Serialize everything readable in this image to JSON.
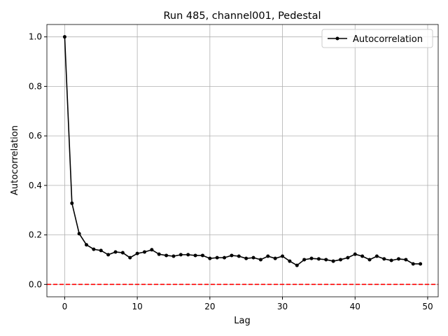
{
  "chart_data": {
    "type": "line",
    "title": "Run 485, channel001, Pedestal",
    "x_label": "Lag",
    "y_label": "Autocorrelation",
    "x": [
      0,
      1,
      2,
      3,
      4,
      5,
      6,
      7,
      8,
      9,
      10,
      11,
      12,
      13,
      14,
      15,
      16,
      17,
      18,
      19,
      20,
      21,
      22,
      23,
      24,
      25,
      26,
      27,
      28,
      29,
      30,
      31,
      32,
      33,
      34,
      35,
      36,
      37,
      38,
      39,
      40,
      41,
      42,
      43,
      44,
      45,
      46,
      47,
      48,
      49
    ],
    "series": [
      {
        "name": "Autocorrelation",
        "color": "#000000",
        "values": [
          1.0,
          0.328,
          0.205,
          0.16,
          0.142,
          0.137,
          0.12,
          0.131,
          0.128,
          0.108,
          0.125,
          0.131,
          0.14,
          0.122,
          0.117,
          0.114,
          0.12,
          0.12,
          0.117,
          0.117,
          0.105,
          0.108,
          0.108,
          0.117,
          0.114,
          0.105,
          0.108,
          0.1,
          0.114,
          0.105,
          0.114,
          0.094,
          0.077,
          0.1,
          0.105,
          0.103,
          0.1,
          0.094,
          0.1,
          0.108,
          0.122,
          0.114,
          0.1,
          0.114,
          0.103,
          0.097,
          0.103,
          0.1,
          0.083,
          0.083
        ]
      }
    ],
    "reference_line": {
      "y": 0,
      "color": "#ff0000"
    },
    "xlim": [
      -2.45,
      51.45
    ],
    "ylim": [
      -0.05,
      1.05
    ],
    "xticks": [
      0,
      10,
      20,
      30,
      40,
      50
    ],
    "yticks": [
      {
        "value": 0,
        "label": "0.0"
      },
      {
        "value": 0.2,
        "label": "0.2"
      },
      {
        "value": 0.4,
        "label": "0.4"
      },
      {
        "value": 0.6,
        "label": "0.6"
      },
      {
        "value": 0.8,
        "label": "0.8"
      },
      {
        "value": 1,
        "label": "1.0"
      }
    ],
    "grid": true,
    "legend": "upper right"
  }
}
